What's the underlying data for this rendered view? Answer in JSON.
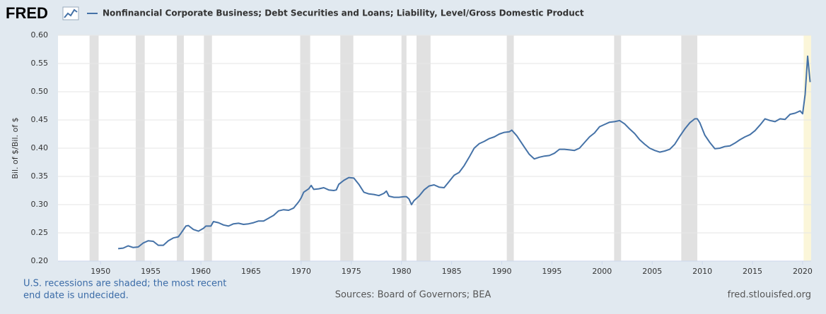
{
  "chart_data": {
    "type": "line",
    "logo": "FRED",
    "title": "Nonfinancial Corporate Business; Debt Securities and Loans; Liability, Level/Gross Domestic Product",
    "y_label": "Bil. of $/Bil. of $",
    "note_lines": [
      "U.S. recessions are shaded; the most recent",
      "end date is undecided."
    ],
    "source": "Sources: Board of Governors; BEA",
    "site": "fred.stlouisfed.org",
    "xlim": [
      1945.75,
      2020.85
    ],
    "xticks": [
      1950,
      1955,
      1960,
      1965,
      1970,
      1975,
      1980,
      1985,
      1990,
      1995,
      2000,
      2005,
      2010,
      2015,
      2020
    ],
    "ylim": [
      0.2,
      0.6
    ],
    "yticks": [
      {
        "value": 0.2,
        "label": "0.20"
      },
      {
        "value": 0.25,
        "label": "0.25"
      },
      {
        "value": 0.3,
        "label": "0.30"
      },
      {
        "value": 0.35,
        "label": "0.35"
      },
      {
        "value": 0.4,
        "label": "0.40"
      },
      {
        "value": 0.45,
        "label": "0.45"
      },
      {
        "value": 0.5,
        "label": "0.50"
      },
      {
        "value": 0.55,
        "label": "0.55"
      },
      {
        "value": 0.6,
        "label": "0.60"
      }
    ],
    "grid": true,
    "recession_color": "#e1e1e1",
    "undecided_color": "#fbf6d9",
    "recessions": [
      [
        1948.9,
        1949.8
      ],
      [
        1953.5,
        1954.4
      ],
      [
        1957.6,
        1958.3
      ],
      [
        1960.3,
        1961.1
      ],
      [
        1969.9,
        1970.9
      ],
      [
        1973.9,
        1975.2
      ],
      [
        1980.0,
        1980.5
      ],
      [
        1981.5,
        1982.9
      ],
      [
        1990.5,
        1991.2
      ],
      [
        2001.2,
        2001.9
      ],
      [
        2007.9,
        2009.5
      ]
    ],
    "undecided_recession": [
      2020.1,
      2020.85
    ],
    "x": [
      1951.75,
      1952.25,
      1952.75,
      1953.25,
      1953.75,
      1954.25,
      1954.75,
      1955.25,
      1955.75,
      1956.25,
      1956.75,
      1957.25,
      1957.75,
      1958.0,
      1958.5,
      1958.75,
      1959.25,
      1959.75,
      1960.25,
      1960.5,
      1961.0,
      1961.25,
      1961.75,
      1962.25,
      1962.75,
      1963.25,
      1963.75,
      1964.25,
      1964.75,
      1965.25,
      1965.75,
      1966.25,
      1966.75,
      1967.25,
      1967.75,
      1968.25,
      1968.75,
      1969.25,
      1969.75,
      1970.0,
      1970.25,
      1970.75,
      1971.0,
      1971.25,
      1971.75,
      1972.25,
      1972.75,
      1973.25,
      1973.5,
      1973.75,
      1974.25,
      1974.75,
      1975.25,
      1975.75,
      1976.25,
      1976.75,
      1977.25,
      1977.75,
      1978.25,
      1978.5,
      1978.75,
      1979.25,
      1979.75,
      1980.25,
      1980.5,
      1980.75,
      1981.0,
      1981.25,
      1981.75,
      1982.25,
      1982.75,
      1983.25,
      1983.75,
      1984.25,
      1984.75,
      1985.25,
      1985.75,
      1986.25,
      1986.75,
      1987.25,
      1987.75,
      1988.25,
      1988.75,
      1989.25,
      1989.75,
      1990.25,
      1990.75,
      1991.0,
      1991.5,
      1992.25,
      1992.75,
      1993.25,
      1993.75,
      1994.25,
      1994.75,
      1995.25,
      1995.75,
      1996.25,
      1996.75,
      1997.25,
      1997.75,
      1998.25,
      1998.75,
      1999.25,
      1999.75,
      2000.25,
      2000.75,
      2001.25,
      2001.75,
      2002.25,
      2002.75,
      2003.25,
      2003.75,
      2004.25,
      2004.75,
      2005.25,
      2005.75,
      2006.25,
      2006.75,
      2007.25,
      2007.75,
      2008.25,
      2008.75,
      2009.25,
      2009.5,
      2009.75,
      2010.25,
      2010.75,
      2011.25,
      2011.75,
      2012.25,
      2012.75,
      2013.25,
      2013.75,
      2014.25,
      2014.75,
      2015.25,
      2015.75,
      2016.25,
      2016.75,
      2017.25,
      2017.75,
      2018.25,
      2018.75,
      2019.25,
      2019.75,
      2020.0,
      2020.25,
      2020.5,
      2020.75
    ],
    "series": [
      {
        "name": "Nonfinancial Corporate Business; Debt Securities and Loans; Liability, Level/Gross Domestic Product",
        "color": "#4572a7",
        "values": [
          0.222,
          0.223,
          0.227,
          0.224,
          0.225,
          0.232,
          0.236,
          0.235,
          0.228,
          0.228,
          0.236,
          0.241,
          0.243,
          0.249,
          0.262,
          0.263,
          0.256,
          0.253,
          0.258,
          0.262,
          0.262,
          0.27,
          0.268,
          0.264,
          0.262,
          0.266,
          0.267,
          0.265,
          0.266,
          0.268,
          0.271,
          0.271,
          0.276,
          0.281,
          0.289,
          0.291,
          0.29,
          0.294,
          0.305,
          0.312,
          0.322,
          0.328,
          0.334,
          0.327,
          0.328,
          0.33,
          0.326,
          0.325,
          0.326,
          0.336,
          0.343,
          0.348,
          0.347,
          0.336,
          0.322,
          0.319,
          0.318,
          0.316,
          0.32,
          0.324,
          0.315,
          0.313,
          0.313,
          0.314,
          0.314,
          0.31,
          0.3,
          0.307,
          0.315,
          0.326,
          0.333,
          0.335,
          0.331,
          0.33,
          0.341,
          0.352,
          0.357,
          0.369,
          0.384,
          0.4,
          0.408,
          0.412,
          0.417,
          0.42,
          0.425,
          0.428,
          0.429,
          0.432,
          0.422,
          0.402,
          0.389,
          0.381,
          0.384,
          0.386,
          0.387,
          0.391,
          0.398,
          0.398,
          0.397,
          0.396,
          0.4,
          0.41,
          0.42,
          0.427,
          0.438,
          0.442,
          0.446,
          0.447,
          0.449,
          0.443,
          0.434,
          0.426,
          0.415,
          0.407,
          0.4,
          0.396,
          0.393,
          0.395,
          0.398,
          0.407,
          0.421,
          0.434,
          0.445,
          0.452,
          0.452,
          0.445,
          0.423,
          0.41,
          0.399,
          0.4,
          0.403,
          0.404,
          0.409,
          0.415,
          0.42,
          0.424,
          0.431,
          0.441,
          0.452,
          0.449,
          0.447,
          0.452,
          0.451,
          0.46,
          0.462,
          0.466,
          0.461,
          0.495,
          0.563,
          0.517
        ]
      }
    ]
  }
}
